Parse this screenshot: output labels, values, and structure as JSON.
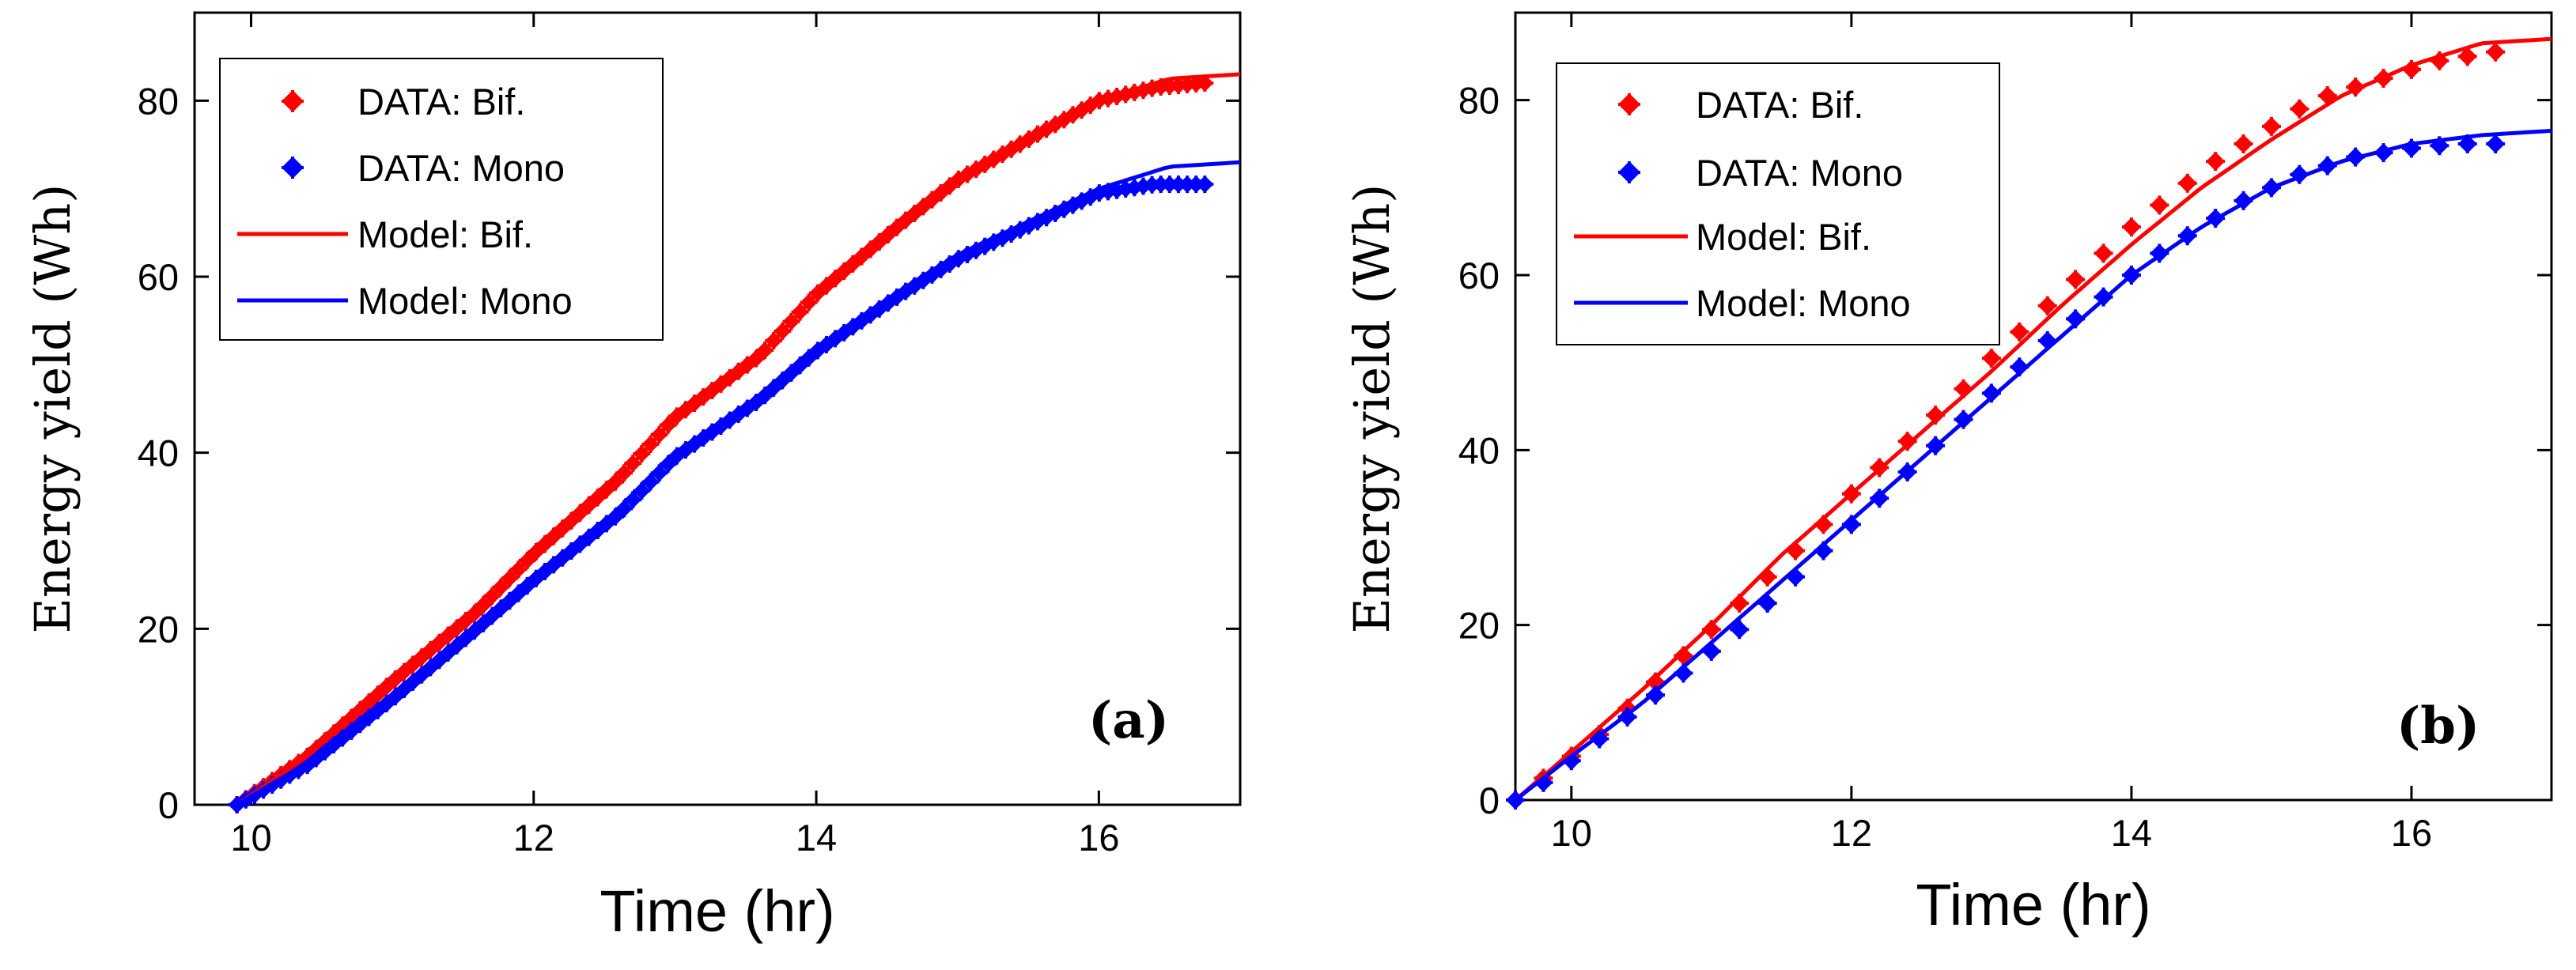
{
  "colors": {
    "bif": "#ff0000",
    "mono": "#0000ff"
  },
  "chart_data": [
    {
      "type": "line",
      "panel_label": "(a)",
      "panel_letter": "a",
      "xlabel": "Time (hr)",
      "ylabel": "Energy yield (Wh)",
      "xlim": [
        9.6,
        17
      ],
      "ylim": [
        0,
        90
      ],
      "xticks": [
        "10",
        "12",
        "14",
        "16"
      ],
      "yticks": [
        "0",
        "20",
        "40",
        "60",
        "80"
      ],
      "legend_position": "top-left",
      "legend": [
        "DATA: Bif.",
        "DATA: Mono",
        "Model: Bif.",
        "Model: Mono"
      ],
      "series": [
        {
          "name": "DATA: Bif.",
          "kind": "markers-dense",
          "color": "bif",
          "x": [
            9.9,
            10.4,
            11.0,
            11.6,
            12.0,
            12.6,
            13.0,
            13.6,
            14.0,
            14.6,
            15.0,
            15.6,
            16.0,
            16.4,
            16.75
          ],
          "y": [
            0,
            5.5,
            14,
            22,
            28.5,
            37,
            44,
            51,
            58,
            66,
            71,
            76.5,
            80,
            81.5,
            82
          ]
        },
        {
          "name": "DATA: Mono",
          "kind": "markers-dense",
          "color": "mono",
          "x": [
            9.9,
            10.4,
            11.0,
            11.6,
            12.0,
            12.6,
            13.0,
            13.6,
            14.0,
            14.6,
            15.0,
            15.6,
            16.0,
            16.4,
            16.75
          ],
          "y": [
            0,
            4.5,
            12,
            20,
            25.5,
            33,
            39.5,
            46,
            51.5,
            58,
            62,
            66.5,
            69.5,
            70.5,
            70.5
          ]
        },
        {
          "name": "Model: Bif.",
          "kind": "line",
          "color": "bif",
          "x": [
            9.9,
            10.4,
            11.0,
            11.6,
            12.0,
            12.6,
            13.0,
            13.6,
            14.0,
            14.6,
            15.0,
            15.6,
            16.0,
            16.5,
            17.0
          ],
          "y": [
            0,
            5.5,
            14,
            22,
            28.5,
            37,
            44,
            51,
            58,
            66,
            71,
            76.5,
            80,
            82.5,
            83
          ]
        },
        {
          "name": "Model: Mono",
          "kind": "line",
          "color": "mono",
          "x": [
            9.9,
            10.4,
            11.0,
            11.6,
            12.0,
            12.6,
            13.0,
            13.6,
            14.0,
            14.6,
            15.0,
            15.6,
            16.0,
            16.5,
            17.0
          ],
          "y": [
            0,
            4.8,
            12.5,
            20.5,
            26,
            33.5,
            40,
            46.5,
            52,
            58.5,
            62.5,
            67,
            70,
            72.5,
            73
          ]
        }
      ]
    },
    {
      "type": "line",
      "panel_label": "(b)",
      "panel_letter": "b",
      "xlabel": "Time (hr)",
      "ylabel": "Energy yield (Wh)",
      "xlim": [
        9.6,
        17
      ],
      "ylim": [
        0,
        90
      ],
      "xticks": [
        "10",
        "12",
        "14",
        "16"
      ],
      "yticks": [
        "0",
        "20",
        "40",
        "60",
        "80"
      ],
      "legend_position": "top-left",
      "legend": [
        "DATA: Bif.",
        "DATA: Mono",
        "Model: Bif.",
        "Model: Mono"
      ],
      "series": [
        {
          "name": "DATA: Bif.",
          "kind": "markers-sparse",
          "color": "bif",
          "x": [
            9.6,
            9.8,
            10.0,
            10.2,
            10.4,
            10.6,
            10.8,
            11.0,
            11.2,
            11.4,
            11.6,
            11.8,
            12.0,
            12.2,
            12.4,
            12.6,
            12.8,
            13.0,
            13.2,
            13.4,
            13.6,
            13.8,
            14.0,
            14.2,
            14.4,
            14.6,
            14.8,
            15.0,
            15.2,
            15.4,
            15.6,
            15.8,
            16.0,
            16.2,
            16.4,
            16.6
          ],
          "y": [
            0,
            2.5,
            5,
            7.5,
            10.5,
            13.5,
            16.5,
            19.5,
            22.5,
            25.5,
            28.5,
            31.5,
            35,
            38,
            41,
            44,
            47,
            50.5,
            53.5,
            56.5,
            59.5,
            62.5,
            65.5,
            68,
            70.5,
            73,
            75,
            77,
            79,
            80.5,
            81.5,
            82.5,
            83.5,
            84.5,
            85,
            85.5
          ]
        },
        {
          "name": "DATA: Mono",
          "kind": "markers-sparse",
          "color": "mono",
          "x": [
            9.6,
            9.8,
            10.0,
            10.2,
            10.4,
            10.6,
            10.8,
            11.0,
            11.2,
            11.4,
            11.6,
            11.8,
            12.0,
            12.2,
            12.4,
            12.6,
            12.8,
            13.0,
            13.2,
            13.4,
            13.6,
            13.8,
            14.0,
            14.2,
            14.4,
            14.6,
            14.8,
            15.0,
            15.2,
            15.4,
            15.6,
            15.8,
            16.0,
            16.2,
            16.4,
            16.6
          ],
          "y": [
            0,
            2,
            4.5,
            7,
            9.5,
            12,
            14.5,
            17,
            19.5,
            22.5,
            25.5,
            28.5,
            31.5,
            34.5,
            37.5,
            40.5,
            43.5,
            46.5,
            49.5,
            52.5,
            55,
            57.5,
            60,
            62.5,
            64.5,
            66.5,
            68.5,
            70,
            71.5,
            72.5,
            73.5,
            74,
            74.5,
            74.8,
            75,
            75
          ]
        },
        {
          "name": "Model: Bif.",
          "kind": "line",
          "color": "bif",
          "x": [
            9.6,
            10.0,
            10.5,
            11.0,
            11.5,
            12.0,
            12.5,
            13.0,
            13.5,
            14.0,
            14.5,
            15.0,
            15.5,
            16.0,
            16.5,
            17.0
          ],
          "y": [
            0,
            5.5,
            12.5,
            20,
            28,
            35,
            42,
            49,
            56.5,
            63.5,
            70,
            75.5,
            80.5,
            84,
            86.5,
            87
          ]
        },
        {
          "name": "Model: Mono",
          "kind": "line",
          "color": "mono",
          "x": [
            9.6,
            10.0,
            10.5,
            11.0,
            11.5,
            12.0,
            12.5,
            13.0,
            13.5,
            14.0,
            14.5,
            15.0,
            15.5,
            16.0,
            16.5,
            17.0
          ],
          "y": [
            0,
            5,
            11,
            18,
            25,
            32,
            39,
            46,
            53,
            60,
            65.5,
            70,
            73,
            75,
            76,
            76.5
          ]
        }
      ]
    }
  ]
}
